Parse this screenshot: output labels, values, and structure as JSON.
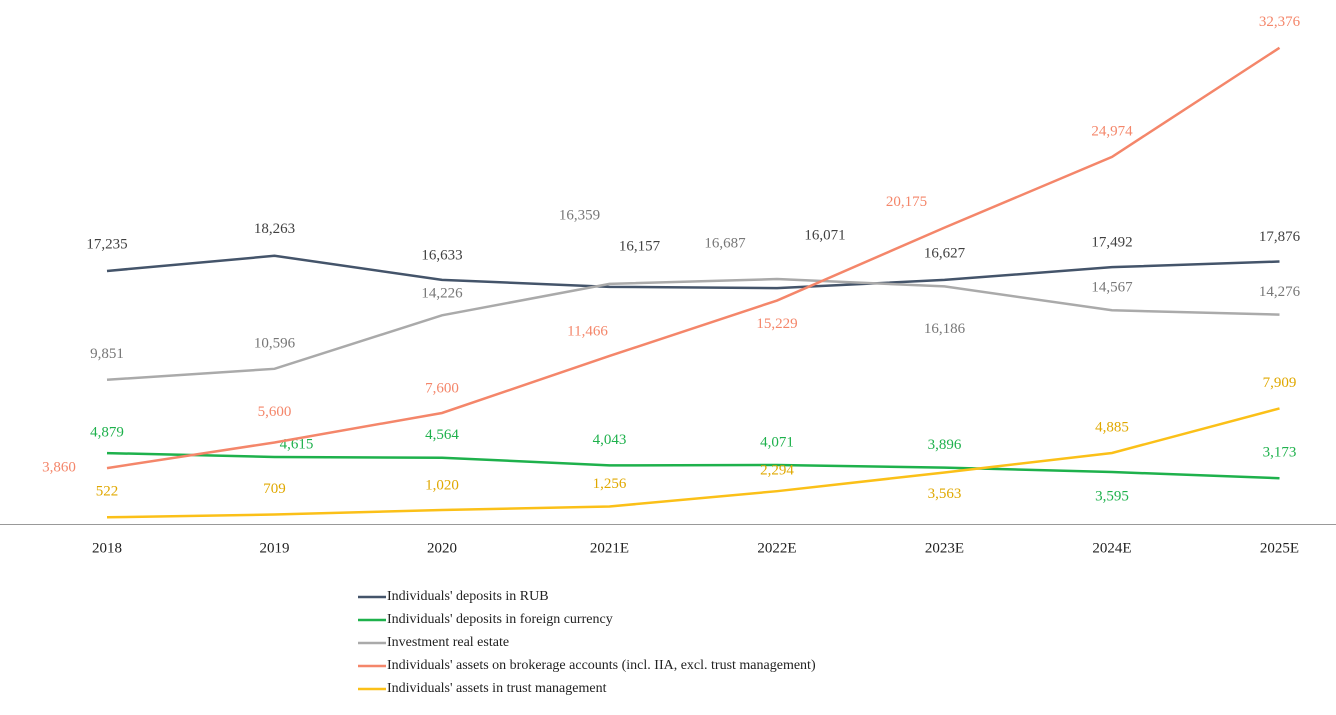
{
  "chart_data": {
    "type": "line",
    "categories": [
      "2018",
      "2019",
      "2020",
      "2021E",
      "2022E",
      "2023E",
      "2024E",
      "2025E"
    ],
    "ylim": [
      0,
      34600
    ],
    "series": [
      {
        "name": "Individuals' deposits in RUB",
        "color": "#44546a",
        "values": [
          17235,
          18263,
          16633,
          16157,
          16071,
          16627,
          17492,
          17876
        ],
        "value_labels": [
          "17,235",
          "18,263",
          "16,633",
          "16,157",
          "16,071",
          "16,627",
          "17,492",
          "17,876"
        ]
      },
      {
        "name": "Individuals' deposits in foreign currency",
        "color": "#1eb14c",
        "values": [
          4879,
          4615,
          4564,
          4043,
          4071,
          3896,
          3595,
          3173
        ],
        "value_labels": [
          "4,879",
          "4,615",
          "4,564",
          "4,043",
          "4,071",
          "3,896",
          "3,595",
          "3,173"
        ]
      },
      {
        "name": "Investment real estate",
        "color": "#aaaaaa",
        "values": [
          9851,
          10596,
          14226,
          16359,
          16687,
          16186,
          14567,
          14276
        ],
        "value_labels": [
          "9,851",
          "10,596",
          "14,226",
          "16,359",
          "16,687",
          "16,186",
          "14,567",
          "14,276"
        ]
      },
      {
        "name": "Individuals' assets on brokerage accounts (incl. IIA, excl. trust management)",
        "color": "#f4866a",
        "values": [
          3860,
          5600,
          7600,
          11466,
          15229,
          20175,
          24974,
          32376
        ],
        "value_labels": [
          "3,860",
          "5,600",
          "7,600",
          "11,466",
          "15,229",
          "20,175",
          "24,974",
          "32,376"
        ]
      },
      {
        "name": "Individuals' assets in trust management",
        "color": "#fbc018",
        "values": [
          522,
          709,
          1020,
          1256,
          2294,
          3563,
          4885,
          7909
        ],
        "value_labels": [
          "522",
          "709",
          "1,020",
          "1,256",
          "2,294",
          "3,563",
          "4,885",
          "7,909"
        ]
      }
    ]
  }
}
